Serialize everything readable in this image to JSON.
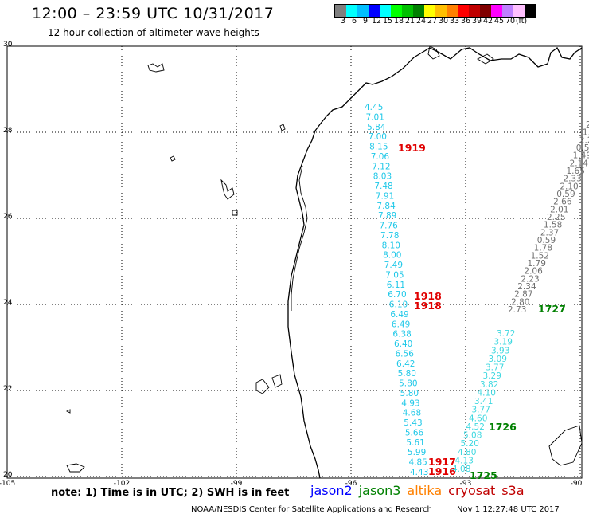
{
  "header": {
    "title": "12:00 – 23:59 UTC 10/31/2017",
    "subtitle": "12 hour collection of altimeter wave heights"
  },
  "scale": {
    "colors": [
      "#7f7f7f",
      "#00ffff",
      "#00bfff",
      "#0000ff",
      "#00ffff",
      "#00ff00",
      "#00c000",
      "#008000",
      "#ffff00",
      "#ffbf00",
      "#ff8000",
      "#ff0000",
      "#c00000",
      "#800000",
      "#ff00ff",
      "#bf80ff",
      "#ffc0ff",
      "#000000"
    ],
    "labels": [
      "3",
      "6",
      "9",
      "12",
      "15",
      "18",
      "21",
      "24",
      "27",
      "30",
      "33",
      "36",
      "39",
      "42",
      "45",
      "70",
      "(ft)"
    ]
  },
  "axes": {
    "y_labels": [
      "30",
      "28",
      "26",
      "24",
      "22",
      "20"
    ],
    "x_labels": [
      "-105",
      "-102",
      "-99",
      "-96",
      "-93",
      "-90"
    ]
  },
  "tracks": {
    "cyan": [
      "4.45",
      "7.01",
      "5.84",
      "7.00",
      "8.15",
      "7.06",
      "7.12",
      "8.03",
      "7.48",
      "7.91",
      "7.84",
      "7.89",
      "7.76",
      "7.78",
      "8.10",
      "8.00",
      "7.49",
      "7.05",
      "6.11",
      "6.70",
      "6.10",
      "6.49",
      "6.49",
      "6.38",
      "6.40",
      "6.56",
      "6.42",
      "5.80",
      "5.80",
      "5.80",
      "4.93",
      "4.68",
      "5.43",
      "5.66",
      "5.61",
      "5.99",
      "4.85",
      "4.43"
    ],
    "gray": [
      "2.",
      "1.",
      "2.2",
      "0.59",
      "1.49",
      "2.14",
      "1.65",
      "2.33",
      "2.10",
      "0.59",
      "2.66",
      "2.01",
      "2.25",
      "1.58",
      "2.37",
      "0.59",
      "1.78",
      "1.52",
      "1.79",
      "2.06",
      "2.23",
      "2.34",
      "2.87",
      "2.80",
      "2.73"
    ],
    "cyan2": [
      "3.72",
      "3.19",
      "3.93",
      "3.09",
      "3.77",
      "3.29",
      "3.82",
      "4.10",
      "3.41",
      "3.77",
      "4.60",
      "4.52",
      "5.08",
      "5.20",
      "4.80",
      "4.13",
      "4.08"
    ]
  },
  "markers": {
    "red": [
      "1919",
      "1918",
      "1918",
      "1917",
      "1916"
    ],
    "green": [
      "1727",
      "1726",
      "1725"
    ]
  },
  "footer": {
    "note": "note:  1) Time is in UTC;  2) SWH is in feet",
    "legend": [
      {
        "name": "jason2",
        "color": "#0000ff"
      },
      {
        "name": "jason3",
        "color": "#008000"
      },
      {
        "name": "altika",
        "color": "#ff8000"
      },
      {
        "name": "cryosat",
        "color": "#c00000"
      },
      {
        "name": "s3a",
        "color": "#c00000"
      }
    ],
    "credit": "NOAA/NESDIS Center for Satellite Applications and Research",
    "timestamp": "Nov  1 12:27:48 UTC 2017"
  }
}
